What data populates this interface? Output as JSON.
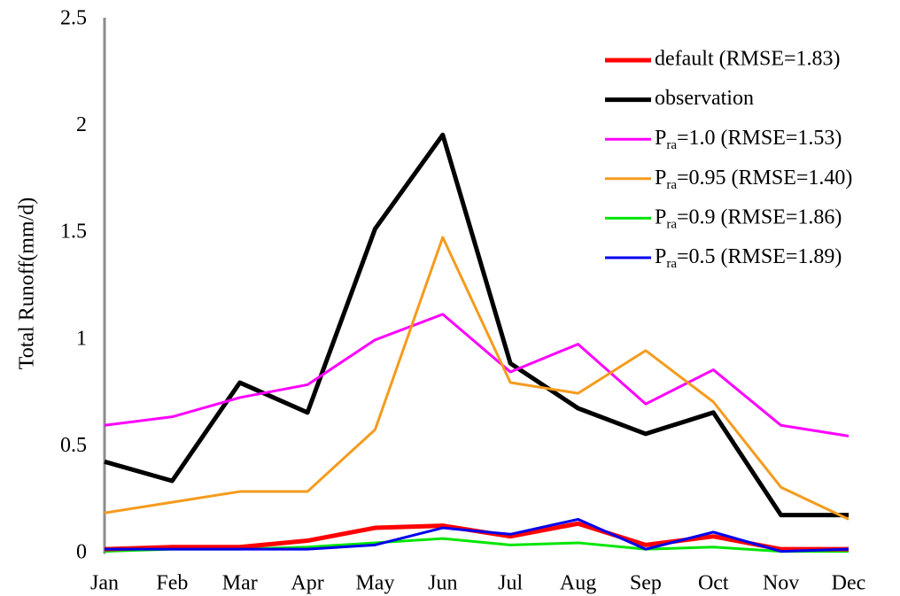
{
  "chart_data": {
    "type": "line",
    "ylabel": "Total Runoff(mm/d)",
    "categories": [
      "Jan",
      "Feb",
      "Mar",
      "Apr",
      "May",
      "Jun",
      "Jul",
      "Aug",
      "Sep",
      "Oct",
      "Nov",
      "Dec"
    ],
    "ylim": [
      0,
      2.5
    ],
    "yticks": [
      0,
      0.5,
      1,
      1.5,
      2,
      2.5
    ],
    "grid": false,
    "legend": "upper right",
    "series": [
      {
        "name": "default (RMSE=1.83)",
        "color": "#ff0000",
        "values": [
          0.02,
          0.03,
          0.03,
          0.06,
          0.12,
          0.13,
          0.08,
          0.14,
          0.04,
          0.08,
          0.02,
          0.02
        ]
      },
      {
        "name": "observation",
        "color": "#000000",
        "values": [
          0.43,
          0.34,
          0.8,
          0.66,
          1.52,
          1.96,
          0.89,
          0.68,
          0.56,
          0.66,
          0.18,
          0.18
        ]
      },
      {
        "name": "Pra=1.0 (RMSE=1.53)",
        "color": "#ff00ff",
        "values": [
          0.6,
          0.64,
          0.73,
          0.79,
          1.0,
          1.12,
          0.85,
          0.98,
          0.7,
          0.86,
          0.6,
          0.55
        ]
      },
      {
        "name": "Pra=0.95 (RMSE=1.40)",
        "color": "#f59b1e",
        "values": [
          0.19,
          0.24,
          0.29,
          0.29,
          0.58,
          1.48,
          0.8,
          0.75,
          0.95,
          0.71,
          0.31,
          0.16
        ]
      },
      {
        "name": "Pra=0.9 (RMSE=1.86)",
        "color": "#00e600",
        "values": [
          0.01,
          0.02,
          0.02,
          0.03,
          0.05,
          0.07,
          0.04,
          0.05,
          0.02,
          0.03,
          0.01,
          0.01
        ]
      },
      {
        "name": "Pra=0.5 (RMSE=1.89)",
        "color": "#0000ee",
        "values": [
          0.02,
          0.02,
          0.02,
          0.02,
          0.04,
          0.12,
          0.09,
          0.16,
          0.02,
          0.1,
          0.01,
          0.02
        ]
      }
    ]
  }
}
